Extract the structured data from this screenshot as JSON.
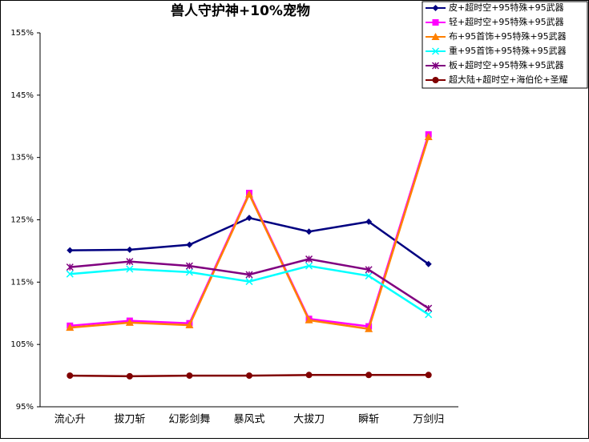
{
  "chart_data": {
    "type": "line",
    "title": "兽人守护神+10%宠物",
    "categories": [
      "流心升",
      "拔刀斩",
      "幻影剑舞",
      "暴风式",
      "大拔刀",
      "瞬斩",
      "万剑归"
    ],
    "ylim": [
      95,
      155
    ],
    "yticks": [
      {
        "value": 95,
        "label": "95%"
      },
      {
        "value": 105,
        "label": "105%"
      },
      {
        "value": 115,
        "label": "115%"
      },
      {
        "value": 125,
        "label": "125%"
      },
      {
        "value": 135,
        "label": "135%"
      },
      {
        "value": 145,
        "label": "145%"
      },
      {
        "value": 155,
        "label": "155%"
      }
    ],
    "legend": "top-right",
    "series": [
      {
        "name": "皮+超时空+95特殊+95武器",
        "color": "#000080",
        "marker": "diamond",
        "values": [
          120.1,
          120.2,
          121.0,
          125.3,
          123.1,
          124.7,
          117.9
        ]
      },
      {
        "name": "轻+超时空+95特殊+95武器",
        "color": "#ff00ff",
        "marker": "square",
        "values": [
          108.0,
          108.8,
          108.4,
          129.3,
          109.1,
          107.9,
          138.7
        ]
      },
      {
        "name": "布+95首饰+95特殊+95武器",
        "color": "#ff8000",
        "marker": "triangle",
        "values": [
          107.7,
          108.5,
          108.1,
          129.1,
          108.9,
          107.5,
          138.3
        ]
      },
      {
        "name": "重+95首饰+95特殊+95武器",
        "color": "#00ffff",
        "marker": "x",
        "values": [
          116.3,
          117.1,
          116.6,
          115.1,
          117.6,
          116.0,
          109.8
        ]
      },
      {
        "name": "板+超时空+95特殊+95武器",
        "color": "#800080",
        "marker": "asterisk",
        "values": [
          117.4,
          118.3,
          117.6,
          116.2,
          118.7,
          117.0,
          110.8
        ]
      },
      {
        "name": "超大陆+超时空+海伯伦+圣耀",
        "color": "#800000",
        "marker": "circle",
        "values": [
          100.0,
          99.9,
          100.0,
          100.0,
          100.1,
          100.1,
          100.1
        ]
      }
    ]
  }
}
